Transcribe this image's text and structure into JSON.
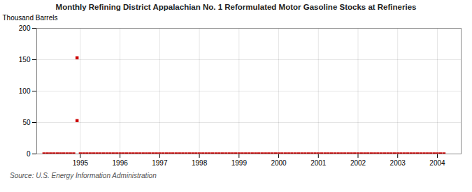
{
  "chart_data": {
    "type": "scatter",
    "title": "Monthly Refining District Appalachian No. 1 Reformulated Motor Gasoline Stocks at Refineries",
    "ylabel": "Thousand Barrels",
    "annotations": [
      "Source: U.S. Energy Information Administration"
    ],
    "x": [
      1994.917,
      1994.917,
      1994.083,
      1994.167,
      1994.25,
      1994.333,
      1994.417,
      1994.5,
      1994.583,
      1994.667,
      1994.75,
      1994.833,
      1995.0,
      1995.083,
      1995.167,
      1995.25,
      1995.333,
      1995.417,
      1995.5,
      1995.583,
      1995.667,
      1995.75,
      1995.833,
      1995.917,
      1996.0,
      1996.083,
      1996.167,
      1996.25,
      1996.333,
      1996.417,
      1996.5,
      1996.583,
      1996.667,
      1996.75,
      1996.833,
      1996.917,
      1997.0,
      1997.083,
      1997.167,
      1997.25,
      1997.333,
      1997.417,
      1997.5,
      1997.583,
      1997.667,
      1997.75,
      1997.833,
      1997.917,
      1998.0,
      1998.083,
      1998.167,
      1998.25,
      1998.333,
      1998.417,
      1998.5,
      1998.583,
      1998.667,
      1998.75,
      1998.833,
      1998.917,
      1999.0,
      1999.083,
      1999.167,
      1999.25,
      1999.333,
      1999.417,
      1999.5,
      1999.583,
      1999.667,
      1999.75,
      1999.833,
      1999.917,
      2000.0,
      2000.083,
      2000.167,
      2000.25,
      2000.333,
      2000.417,
      2000.5,
      2000.583,
      2000.667,
      2000.75,
      2000.833,
      2000.917,
      2001.0,
      2001.083,
      2001.167,
      2001.25,
      2001.333,
      2001.417,
      2001.5,
      2001.583,
      2001.667,
      2001.75,
      2001.833,
      2001.917,
      2002.0,
      2002.083,
      2002.167,
      2002.25,
      2002.333,
      2002.417,
      2002.5,
      2002.583,
      2002.667,
      2002.75,
      2002.833,
      2002.917,
      2003.0,
      2003.083,
      2003.167,
      2003.25,
      2003.333,
      2003.417,
      2003.5,
      2003.583,
      2003.667,
      2003.75,
      2003.833,
      2003.917,
      2004.0,
      2004.083,
      2004.167
    ],
    "values": [
      153,
      53,
      0,
      0,
      0,
      0,
      0,
      0,
      0,
      0,
      0,
      0,
      0,
      0,
      0,
      0,
      0,
      0,
      0,
      0,
      0,
      0,
      0,
      0,
      0,
      0,
      0,
      0,
      0,
      0,
      0,
      0,
      0,
      0,
      0,
      0,
      0,
      0,
      0,
      0,
      0,
      0,
      0,
      0,
      0,
      0,
      0,
      0,
      0,
      0,
      0,
      0,
      0,
      0,
      0,
      0,
      0,
      0,
      0,
      0,
      0,
      0,
      0,
      0,
      0,
      0,
      0,
      0,
      0,
      0,
      0,
      0,
      0,
      0,
      0,
      0,
      0,
      0,
      0,
      0,
      0,
      0,
      0,
      0,
      0,
      0,
      0,
      0,
      0,
      0,
      0,
      0,
      0,
      0,
      0,
      0,
      0,
      0,
      0,
      0,
      0,
      0,
      0,
      0,
      0,
      0,
      0,
      0,
      0,
      0,
      0,
      0,
      0,
      0,
      0,
      0,
      0,
      0,
      0,
      0,
      0,
      0,
      0
    ],
    "color": "#cc0000",
    "marker": "square",
    "xlim": [
      1993.9,
      2004.6
    ],
    "xticks": [
      1995,
      1996,
      1997,
      1998,
      1999,
      2000,
      2001,
      2002,
      2003,
      2004
    ],
    "ylim": [
      0,
      200
    ],
    "yticks": [
      0,
      50,
      100,
      150,
      200
    ],
    "grid": true
  }
}
